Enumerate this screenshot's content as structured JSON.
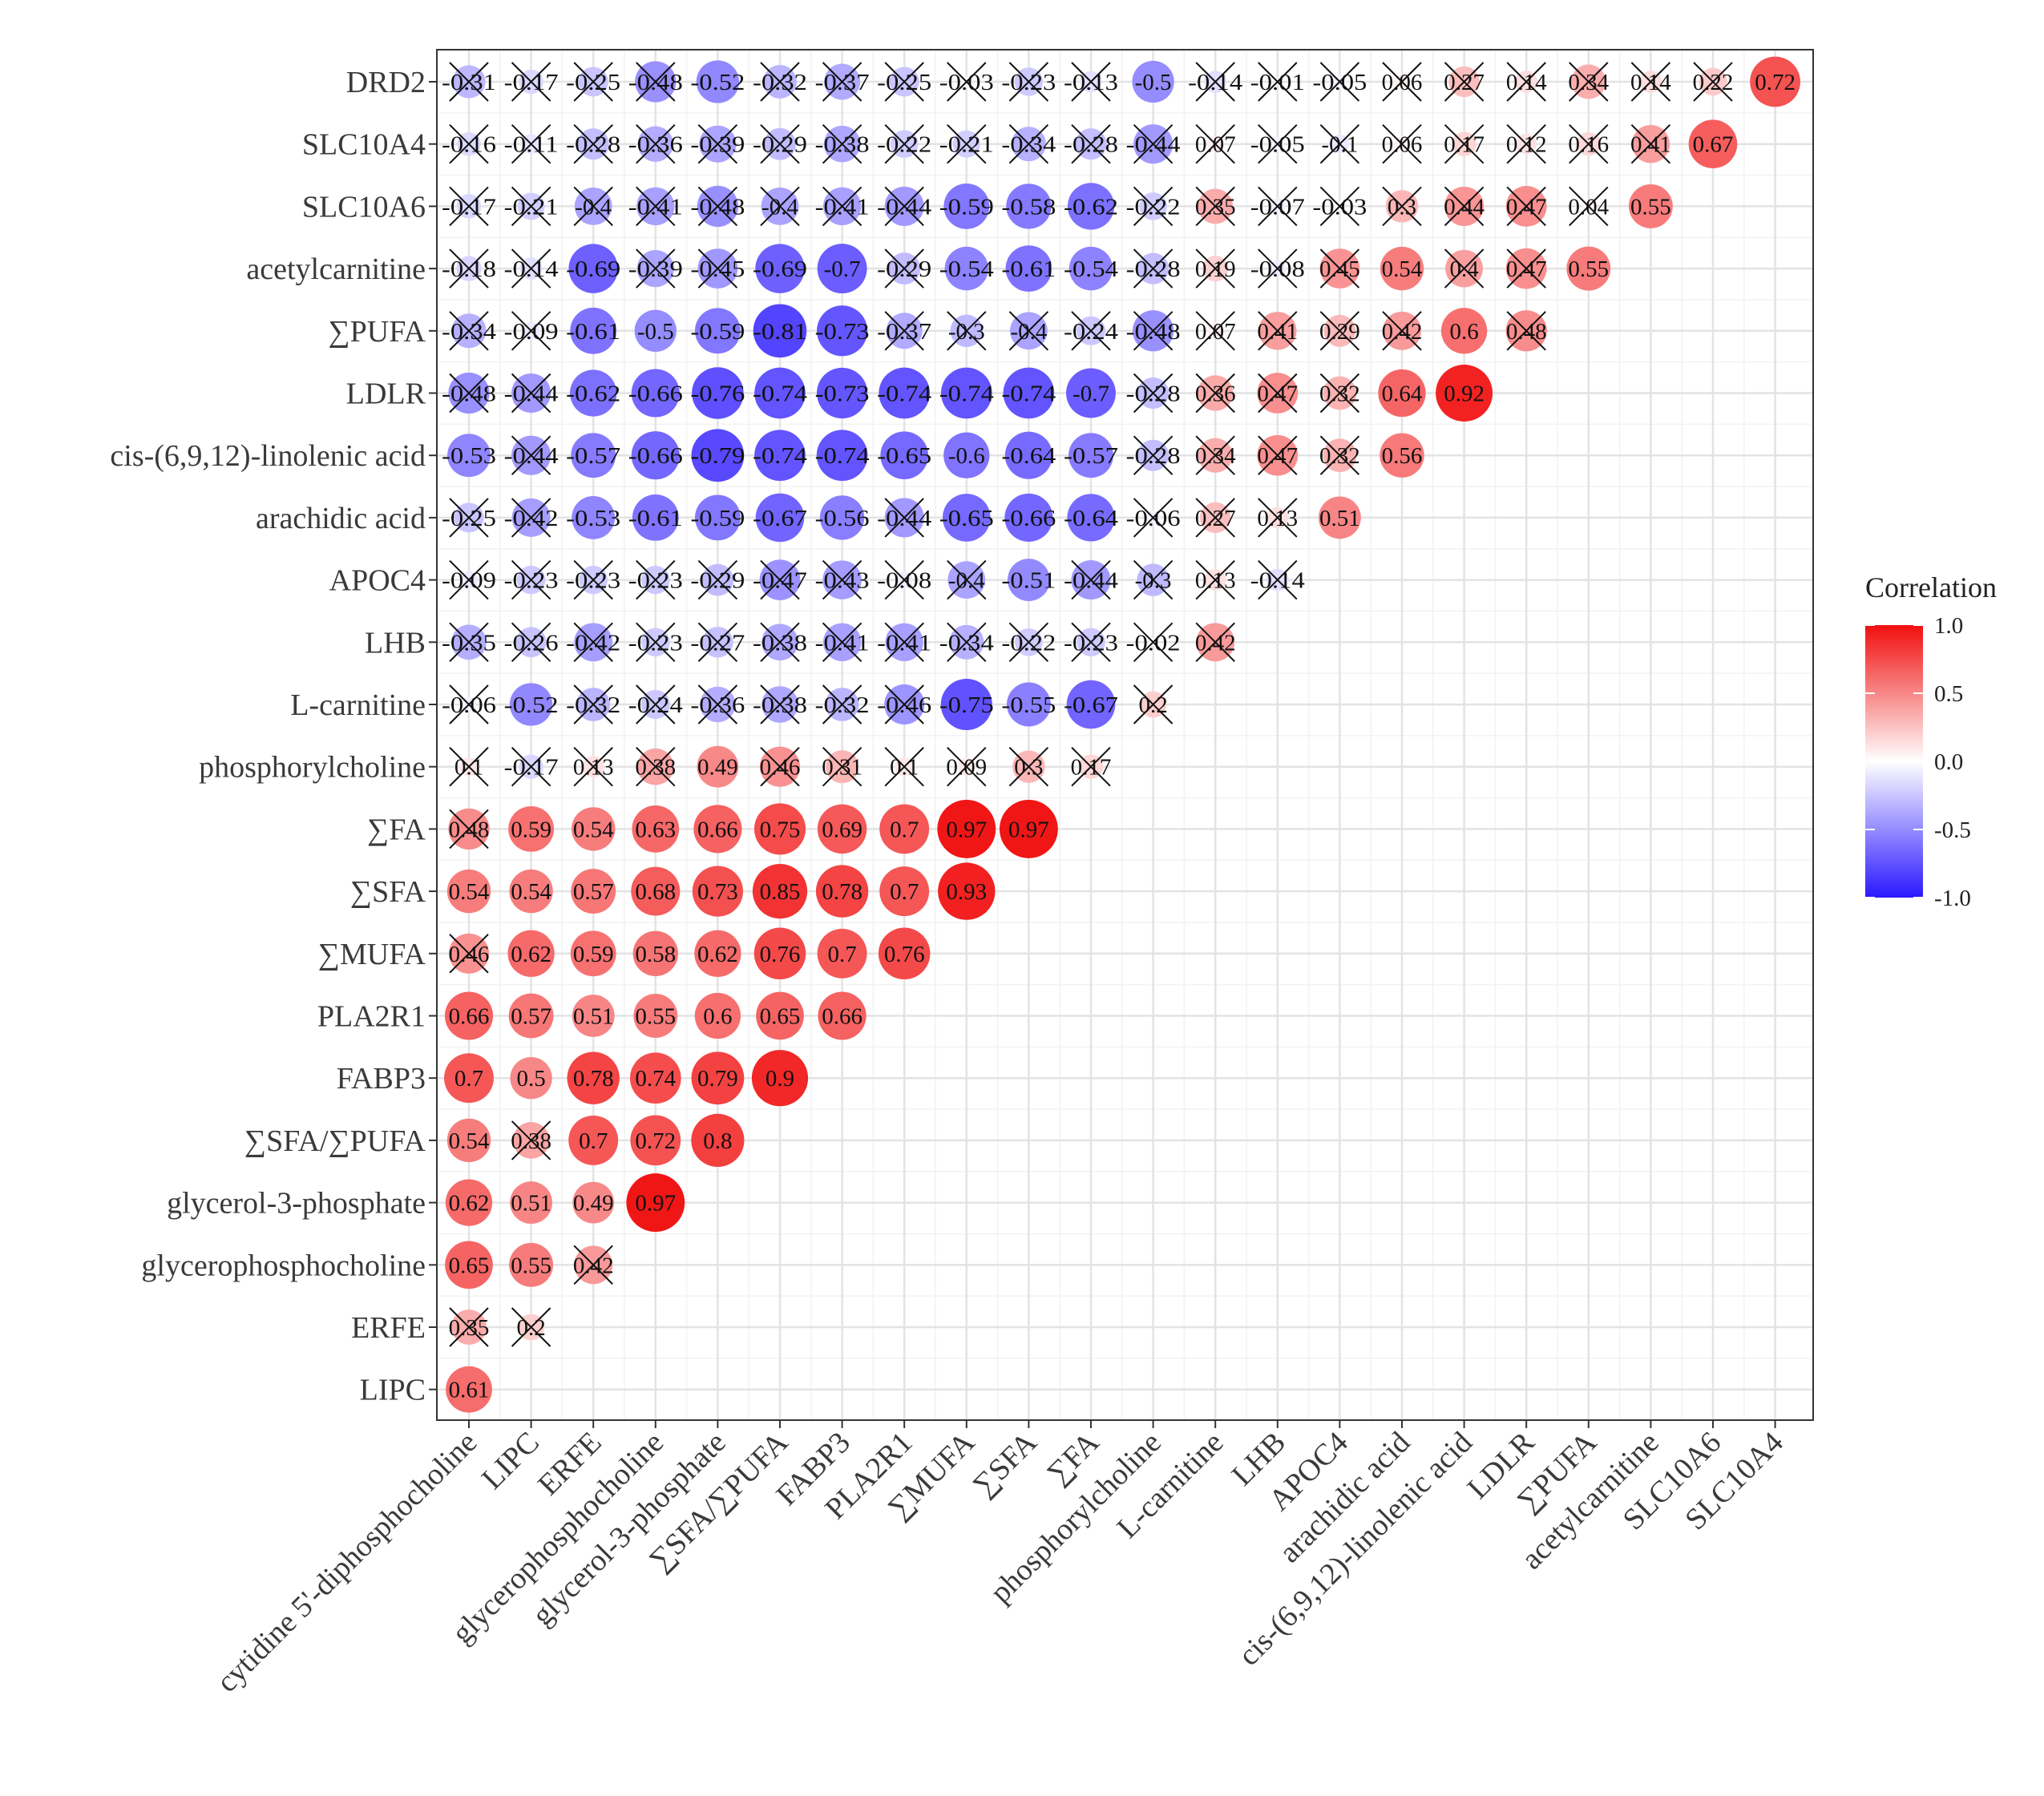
{
  "chart_data": {
    "type": "heatmap",
    "subtype": "correlation-circle-triangle",
    "y_labels": [
      "DRD2",
      "SLC10A4",
      "SLC10A6",
      "acetylcarnitine",
      "∑PUFA",
      "LDLR",
      "cis-(6,9,12)-linolenic acid",
      "arachidic acid",
      "APOC4",
      "LHB",
      "L-carnitine",
      "phosphorylcholine",
      "∑FA",
      "∑SFA",
      "∑MUFA",
      "PLA2R1",
      "FABP3",
      "∑SFA/∑PUFA",
      "glycerol-3-phosphate",
      "glycerophosphocholine",
      "ERFE",
      "LIPC"
    ],
    "x_labels": [
      "cytidine 5'-diphosphocholine",
      "LIPC",
      "ERFE",
      "glycerophosphocholine",
      "glycerol-3-phosphate",
      "∑SFA/∑PUFA",
      "FABP3",
      "PLA2R1",
      "∑MUFA",
      "∑SFA",
      "∑FA",
      "phosphorylcholine",
      "L-carnitine",
      "LHB",
      "APOC4",
      "arachidic acid",
      "cis-(6,9,12)-linolenic acid",
      "LDLR",
      "∑PUFA",
      "acetylcarnitine",
      "SLC10A6",
      "SLC10A4"
    ],
    "cells": [
      [
        "-0.31",
        "-0.17",
        "-0.25",
        "-0.48",
        "-0.52",
        "-0.32",
        "-0.37",
        "-0.25",
        "-0.03",
        "-0.23",
        "-0.13",
        "-0.5",
        "-0.14",
        "-0.01",
        "-0.05",
        "0.06",
        "0.27",
        "0.14",
        "0.34",
        "0.14",
        "0.22",
        "0.72"
      ],
      [
        "-0.16",
        "-0.11",
        "-0.28",
        "-0.36",
        "-0.39",
        "-0.29",
        "-0.38",
        "-0.22",
        "-0.21",
        "-0.34",
        "-0.28",
        "-0.44",
        "0.07",
        "-0.05",
        "-0.1",
        "0.06",
        "0.17",
        "0.12",
        "0.16",
        "0.41",
        "0.67"
      ],
      [
        "-0.17",
        "-0.21",
        "-0.4",
        "-0.41",
        "-0.48",
        "-0.4",
        "-0.41",
        "-0.44",
        "-0.59",
        "-0.58",
        "-0.62",
        "-0.22",
        "0.35",
        "-0.07",
        "-0.03",
        "0.3",
        "0.44",
        "0.47",
        "0.04",
        "0.55"
      ],
      [
        "-0.18",
        "-0.14",
        "-0.69",
        "-0.39",
        "-0.45",
        "-0.69",
        "-0.7",
        "-0.29",
        "-0.54",
        "-0.61",
        "-0.54",
        "-0.28",
        "0.19",
        "-0.08",
        "0.45",
        "0.54",
        "0.4",
        "0.47",
        "0.55"
      ],
      [
        "-0.34",
        "-0.09",
        "-0.61",
        "-0.5",
        "-0.59",
        "-0.81",
        "-0.73",
        "-0.37",
        "-0.3",
        "-0.4",
        "-0.24",
        "-0.48",
        "0.07",
        "0.41",
        "0.29",
        "0.42",
        "0.6",
        "0.48"
      ],
      [
        "-0.48",
        "-0.44",
        "-0.62",
        "-0.66",
        "-0.76",
        "-0.74",
        "-0.73",
        "-0.74",
        "-0.74",
        "-0.74",
        "-0.7",
        "-0.28",
        "0.36",
        "0.47",
        "0.32",
        "0.64",
        "0.92"
      ],
      [
        "-0.53",
        "-0.44",
        "-0.57",
        "-0.66",
        "-0.79",
        "-0.74",
        "-0.74",
        "-0.65",
        "-0.6",
        "-0.64",
        "-0.57",
        "-0.28",
        "0.34",
        "0.47",
        "0.32",
        "0.56"
      ],
      [
        "-0.25",
        "-0.42",
        "-0.53",
        "-0.61",
        "-0.59",
        "-0.67",
        "-0.56",
        "-0.44",
        "-0.65",
        "-0.66",
        "-0.64",
        "-0.06",
        "0.27",
        "0.13",
        "0.51"
      ],
      [
        "-0.09",
        "-0.23",
        "-0.23",
        "-0.23",
        "-0.29",
        "-0.47",
        "-0.43",
        "-0.08",
        "-0.4",
        "-0.51",
        "-0.44",
        "-0.3",
        "0.13",
        "-0.14"
      ],
      [
        "-0.35",
        "-0.26",
        "-0.42",
        "-0.23",
        "-0.27",
        "-0.38",
        "-0.41",
        "-0.41",
        "-0.34",
        "-0.22",
        "-0.23",
        "-0.02",
        "0.42"
      ],
      [
        "-0.06",
        "-0.52",
        "-0.32",
        "-0.24",
        "-0.36",
        "-0.38",
        "-0.32",
        "-0.46",
        "-0.75",
        "-0.55",
        "-0.67",
        "0.2"
      ],
      [
        "0.1",
        "-0.17",
        "0.13",
        "0.38",
        "0.49",
        "0.46",
        "0.31",
        "0.1",
        "0.09",
        "0.3",
        "0.17"
      ],
      [
        "0.48",
        "0.59",
        "0.54",
        "0.63",
        "0.66",
        "0.75",
        "0.69",
        "0.7",
        "0.97",
        "0.97"
      ],
      [
        "0.54",
        "0.54",
        "0.57",
        "0.68",
        "0.73",
        "0.85",
        "0.78",
        "0.7",
        "0.93"
      ],
      [
        "0.46",
        "0.62",
        "0.59",
        "0.58",
        "0.62",
        "0.76",
        "0.7",
        "0.76"
      ],
      [
        "0.66",
        "0.57",
        "0.51",
        "0.55",
        "0.6",
        "0.65",
        "0.66"
      ],
      [
        "0.7",
        "0.5",
        "0.78",
        "0.74",
        "0.79",
        "0.9"
      ],
      [
        "0.54",
        "0.38",
        "0.7",
        "0.72",
        "0.8"
      ],
      [
        "0.62",
        "0.51",
        "0.49",
        "0.97"
      ],
      [
        "0.65",
        "0.55",
        "0.42"
      ],
      [
        "0.35",
        "0.2"
      ],
      [
        "0.61"
      ]
    ],
    "crossed": [
      [
        0,
        1,
        2,
        3,
        5,
        6,
        7,
        8,
        9,
        10,
        12,
        13,
        14,
        15,
        16,
        17,
        18,
        19,
        20
      ],
      [
        0,
        1,
        2,
        3,
        4,
        5,
        6,
        7,
        8,
        9,
        10,
        11,
        12,
        13,
        14,
        15,
        16,
        17,
        18,
        19
      ],
      [
        0,
        1,
        2,
        3,
        4,
        5,
        6,
        7,
        11,
        12,
        13,
        14,
        15,
        16,
        17,
        18
      ],
      [
        0,
        1,
        3,
        4,
        7,
        11,
        12,
        13,
        14,
        16,
        17
      ],
      [
        0,
        1,
        7,
        8,
        9,
        10,
        11,
        12,
        13,
        14,
        15,
        17
      ],
      [
        0,
        1,
        11,
        12,
        13,
        14
      ],
      [
        1,
        11,
        12,
        13,
        14
      ],
      [
        0,
        1,
        7,
        11,
        12,
        13
      ],
      [
        0,
        1,
        2,
        3,
        4,
        5,
        6,
        7,
        8,
        10,
        11,
        12,
        13
      ],
      [
        0,
        1,
        2,
        3,
        4,
        5,
        6,
        7,
        8,
        9,
        10,
        11,
        12
      ],
      [
        0,
        2,
        3,
        4,
        5,
        6,
        7,
        11
      ],
      [
        0,
        1,
        2,
        3,
        5,
        6,
        7,
        8,
        9,
        10
      ],
      [
        0
      ],
      [],
      [
        0
      ],
      [],
      [],
      [
        1
      ],
      [],
      [
        2
      ],
      [
        0,
        1
      ],
      []
    ],
    "legend": {
      "title": "Correlation",
      "ticks": [
        "1.0",
        "0.5",
        "0.0",
        "-0.5",
        "-1.0"
      ],
      "range": [
        -1,
        1
      ]
    },
    "colors": {
      "low": "#2b18ff",
      "mid": "#ffffff",
      "high": "#f10f0f"
    }
  }
}
